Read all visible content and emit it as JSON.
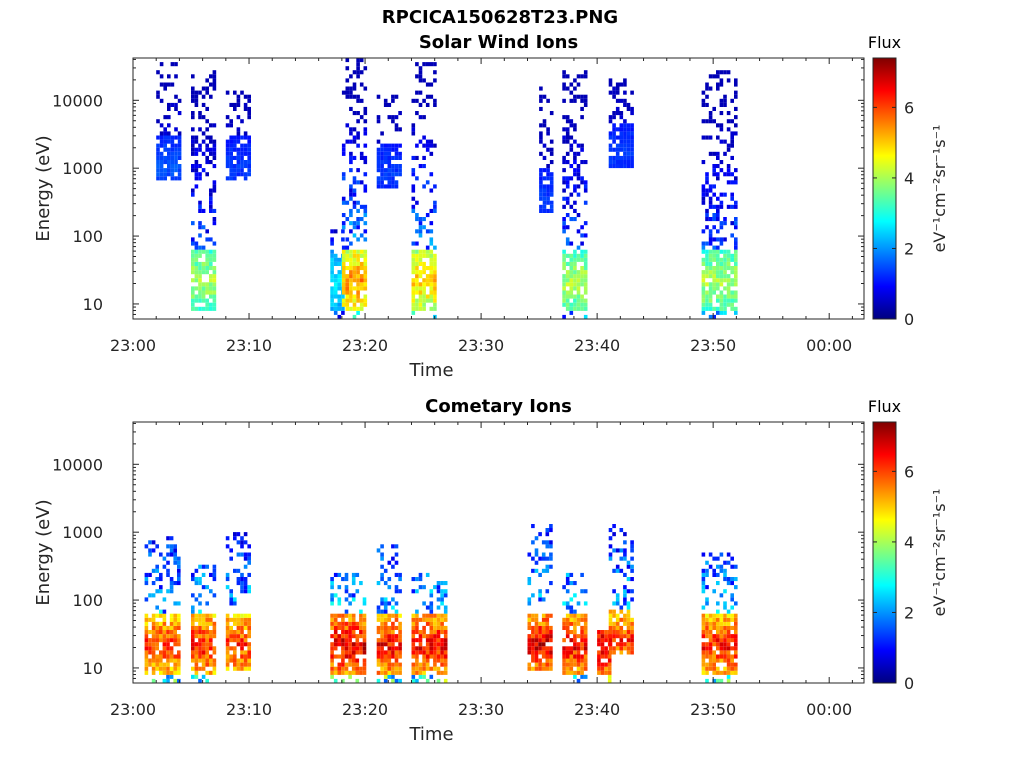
{
  "page": {
    "title": "RPCICA150628T23.PNG"
  },
  "colormap": [
    "#00007f",
    "#0000ff",
    "#007fff",
    "#00ffff",
    "#7fff7f",
    "#ffff00",
    "#ff7f00",
    "#ff0000",
    "#7f0000"
  ],
  "chart_data": [
    {
      "type": "heatmap",
      "title": "Solar Wind Ions",
      "xlabel": "Time",
      "ylabel": "Energy (eV)",
      "xlim": [
        "23:00",
        "00:03"
      ],
      "xticks": [
        "23:00",
        "23:10",
        "23:20",
        "23:30",
        "23:40",
        "23:50",
        "00:00"
      ],
      "ylim": [
        6,
        42000
      ],
      "yscale": "log",
      "yticks": [
        {
          "value": 10,
          "label": "10"
        },
        {
          "value": 100,
          "label": "100"
        },
        {
          "value": 1000,
          "label": "1000"
        },
        {
          "value": 10000,
          "label": "10000"
        }
      ],
      "colorbar": {
        "title": "Flux",
        "label": "eV⁻¹cm⁻²sr⁻¹s⁻¹",
        "range": [
          0,
          7.4
        ],
        "ticks": [
          "0",
          "2",
          "4",
          "6"
        ]
      },
      "bursts": [
        {
          "start": "23:02",
          "end": "23:04",
          "emin": 600,
          "emax": 35000,
          "peak": 1.7
        },
        {
          "start": "23:05",
          "end": "23:07",
          "emin": 7,
          "emax": 25000,
          "peak": 4.5
        },
        {
          "start": "23:08",
          "end": "23:10",
          "emin": 600,
          "emax": 13000,
          "peak": 1.5
        },
        {
          "start": "23:17",
          "end": "23:18",
          "emin": 6,
          "emax": 120,
          "peak": 3.0
        },
        {
          "start": "23:18",
          "end": "23:20",
          "emin": 6,
          "emax": 40000,
          "peak": 6.0
        },
        {
          "start": "23:21",
          "end": "23:23",
          "emin": 500,
          "emax": 13000,
          "peak": 1.5
        },
        {
          "start": "23:24",
          "end": "23:26",
          "emin": 6,
          "emax": 35000,
          "peak": 5.5
        },
        {
          "start": "23:35",
          "end": "23:36",
          "emin": 200,
          "emax": 15000,
          "peak": 1.5
        },
        {
          "start": "23:37",
          "end": "23:39",
          "emin": 6,
          "emax": 25000,
          "peak": 4.5
        },
        {
          "start": "23:41",
          "end": "23:43",
          "emin": 1000,
          "emax": 20000,
          "peak": 1.5
        },
        {
          "start": "23:49",
          "end": "23:52",
          "emin": 6,
          "emax": 25000,
          "peak": 4.5
        }
      ]
    },
    {
      "type": "heatmap",
      "title": "Cometary Ions",
      "xlabel": "Time",
      "ylabel": "Energy (eV)",
      "xlim": [
        "23:00",
        "00:03"
      ],
      "xticks": [
        "23:00",
        "23:10",
        "23:20",
        "23:30",
        "23:40",
        "23:50",
        "00:00"
      ],
      "ylim": [
        6,
        42000
      ],
      "yscale": "log",
      "yticks": [
        {
          "value": 10,
          "label": "10"
        },
        {
          "value": 100,
          "label": "100"
        },
        {
          "value": 1000,
          "label": "1000"
        },
        {
          "value": 10000,
          "label": "10000"
        }
      ],
      "colorbar": {
        "title": "Flux",
        "label": "eV⁻¹cm⁻²sr⁻¹s⁻¹",
        "range": [
          0,
          7.4
        ],
        "ticks": [
          "0",
          "2",
          "4",
          "6"
        ]
      },
      "bursts": [
        {
          "start": "23:01",
          "end": "23:04",
          "emin": 6,
          "emax": 800,
          "peak": 6.8
        },
        {
          "start": "23:05",
          "end": "23:07",
          "emin": 6,
          "emax": 300,
          "peak": 7.0
        },
        {
          "start": "23:08",
          "end": "23:10",
          "emin": 8,
          "emax": 900,
          "peak": 6.8
        },
        {
          "start": "23:17",
          "end": "23:20",
          "emin": 6,
          "emax": 250,
          "peak": 7.4
        },
        {
          "start": "23:21",
          "end": "23:23",
          "emin": 6,
          "emax": 650,
          "peak": 7.2
        },
        {
          "start": "23:24",
          "end": "23:27",
          "emin": 6,
          "emax": 250,
          "peak": 7.2
        },
        {
          "start": "23:34",
          "end": "23:36",
          "emin": 8,
          "emax": 1500,
          "peak": 7.4
        },
        {
          "start": "23:37",
          "end": "23:39",
          "emin": 6,
          "emax": 220,
          "peak": 7.2
        },
        {
          "start": "23:40",
          "end": "23:41",
          "emin": 6,
          "emax": 35,
          "peak": 7.4
        },
        {
          "start": "23:41",
          "end": "23:43",
          "emin": 15,
          "emax": 1300,
          "peak": 6.8
        },
        {
          "start": "23:49",
          "end": "23:52",
          "emin": 6,
          "emax": 500,
          "peak": 7.0
        }
      ]
    }
  ]
}
